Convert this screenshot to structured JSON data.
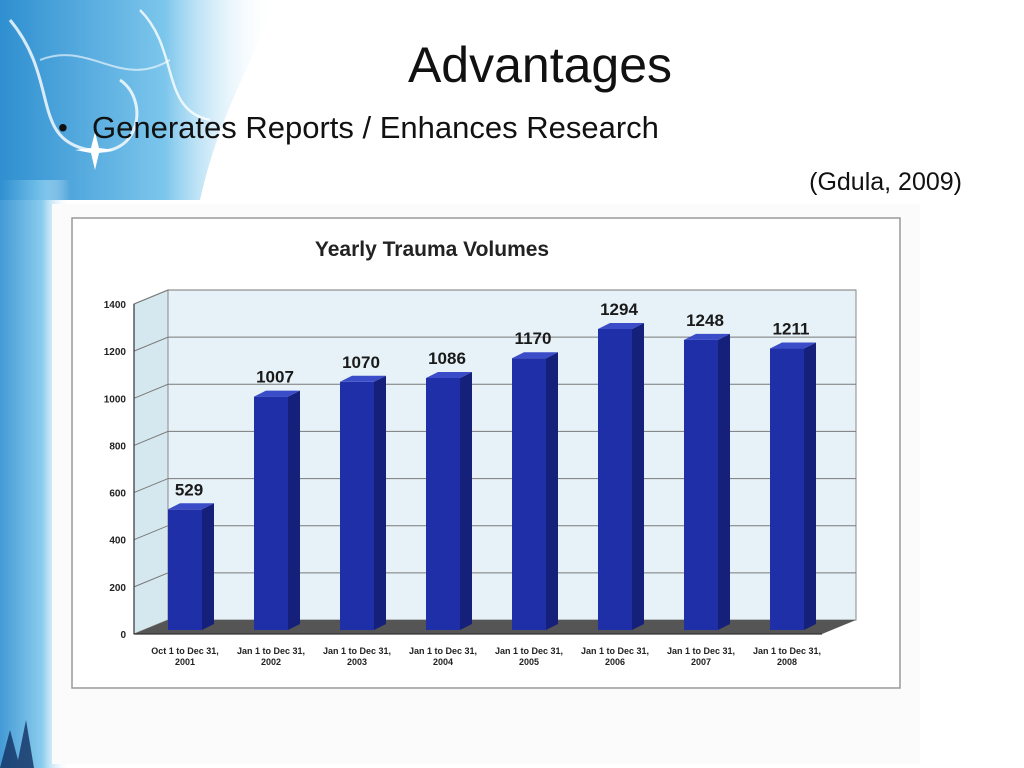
{
  "slide": {
    "title": "Advantages",
    "bullet": "Generates Reports / Enhances Research",
    "citation": "(Gdula, 2009)"
  },
  "colors": {
    "bar_front": "#1f2fa8",
    "bar_side": "#15207a",
    "bar_top": "#3a4cc8",
    "plot_bg": "#e6f2f7",
    "floor": "#555555",
    "sidebar_blue": "#3aa0d8"
  },
  "chart_data": {
    "type": "bar",
    "title": "Yearly Trauma Volumes",
    "categories": [
      [
        "Oct 1 to Dec 31,",
        "2001"
      ],
      [
        "Jan 1 to Dec 31,",
        "2002"
      ],
      [
        "Jan 1 to Dec 31,",
        "2003"
      ],
      [
        "Jan 1 to Dec 31,",
        "2004"
      ],
      [
        "Jan 1 to Dec 31,",
        "2005"
      ],
      [
        "Jan 1 to Dec 31,",
        "2006"
      ],
      [
        "Jan 1 to Dec 31,",
        "2007"
      ],
      [
        "Jan 1 to Dec 31,",
        "2008"
      ]
    ],
    "values": [
      529,
      1007,
      1070,
      1086,
      1170,
      1294,
      1248,
      1211
    ],
    "data_labels": [
      "529",
      "1007",
      "1070",
      "1086",
      "1170",
      "1294",
      "1248",
      "1211"
    ],
    "yticks": [
      "0",
      "200",
      "400",
      "600",
      "800",
      "1000",
      "1200",
      "1400"
    ],
    "ylim": [
      0,
      1400
    ],
    "grid": true,
    "style": "3d"
  }
}
